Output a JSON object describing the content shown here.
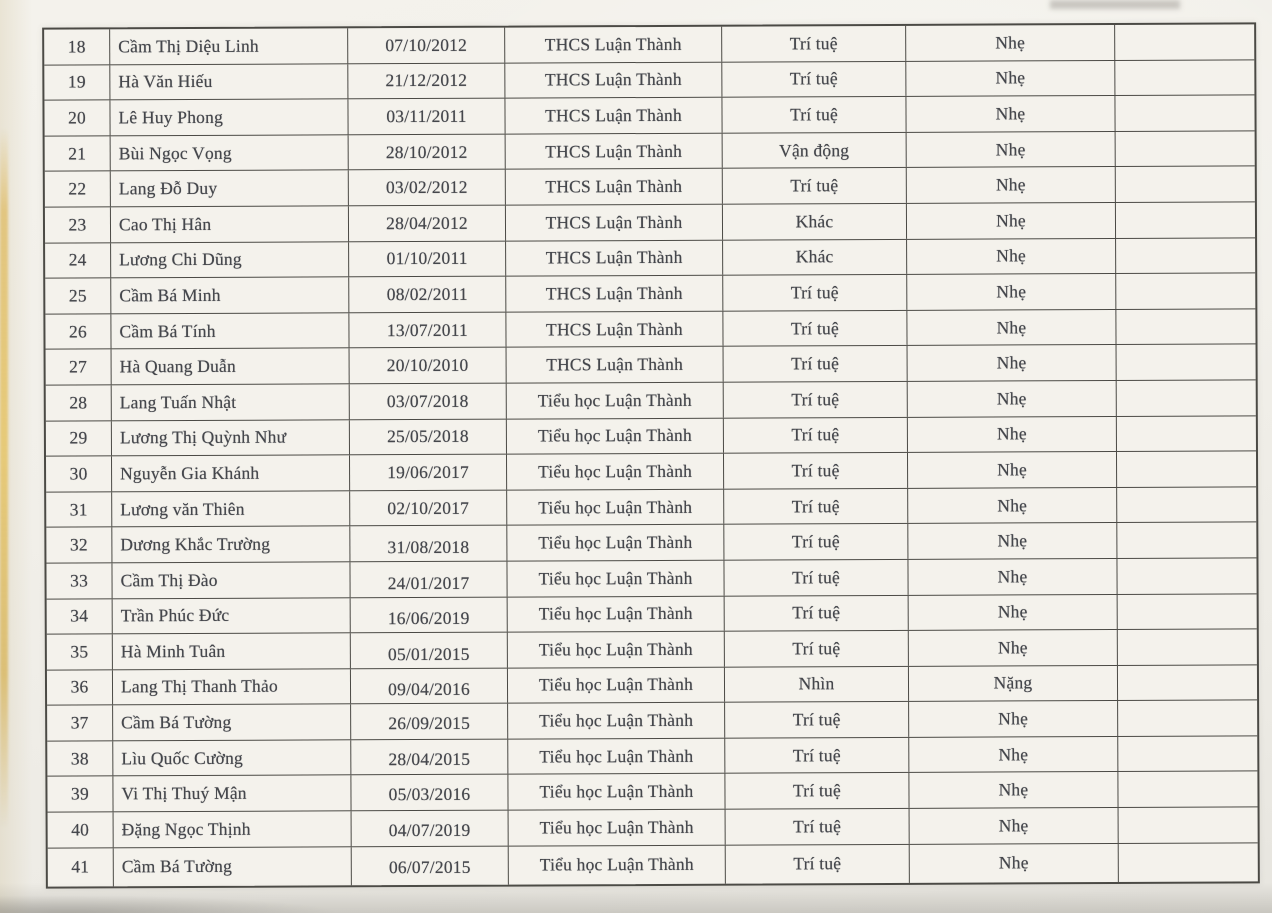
{
  "colors": {
    "paper": "#f1efe9",
    "table_background": "#f4f2ec",
    "table_border": "#4b4a45",
    "text": "#45474c",
    "page_edge_yellow": "#e0bd67"
  },
  "table": {
    "columns": [
      "index",
      "name",
      "date_of_birth",
      "school",
      "disability_type",
      "severity",
      "note"
    ],
    "rows": [
      [
        "18",
        "Cầm Thị Diệu Linh",
        "07/10/2012",
        "THCS Luận Thành",
        "Trí tuệ",
        "Nhẹ",
        ""
      ],
      [
        "19",
        "Hà Văn Hiếu",
        "21/12/2012",
        "THCS Luận Thành",
        "Trí tuệ",
        "Nhẹ",
        ""
      ],
      [
        "20",
        "Lê Huy Phong",
        "03/11/2011",
        "THCS Luận Thành",
        "Trí tuệ",
        "Nhẹ",
        ""
      ],
      [
        "21",
        "Bùi Ngọc Vọng",
        "28/10/2012",
        "THCS Luận Thành",
        "Vận động",
        "Nhẹ",
        ""
      ],
      [
        "22",
        "Lang Đỗ Duy",
        "03/02/2012",
        "THCS Luận Thành",
        "Trí tuệ",
        "Nhẹ",
        ""
      ],
      [
        "23",
        "Cao Thị Hân",
        "28/04/2012",
        "THCS Luận Thành",
        "Khác",
        "Nhẹ",
        ""
      ],
      [
        "24",
        "Lương Chi Dũng",
        "01/10/2011",
        "THCS Luận Thành",
        "Khác",
        "Nhẹ",
        ""
      ],
      [
        "25",
        "Cầm Bá Minh",
        "08/02/2011",
        "THCS Luận Thành",
        "Trí tuệ",
        "Nhẹ",
        ""
      ],
      [
        "26",
        "Cầm Bá Tính",
        "13/07/2011",
        "THCS Luận Thành",
        "Trí tuệ",
        "Nhẹ",
        ""
      ],
      [
        "27",
        "Hà Quang Duẫn",
        "20/10/2010",
        "THCS Luận Thành",
        "Trí tuệ",
        "Nhẹ",
        ""
      ],
      [
        "28",
        "Lang Tuấn Nhật",
        "03/07/2018",
        "Tiểu học Luận Thành",
        "Trí tuệ",
        "Nhẹ",
        ""
      ],
      [
        "29",
        "Lương Thị Quỳnh Như",
        "25/05/2018",
        "Tiểu học Luận Thành",
        "Trí tuệ",
        "Nhẹ",
        ""
      ],
      [
        "30",
        "Nguyễn Gia Khánh",
        "19/06/2017",
        "Tiểu học Luận Thành",
        "Trí tuệ",
        "Nhẹ",
        ""
      ],
      [
        "31",
        "Lương văn Thiên",
        "02/10/2017",
        "Tiểu học Luận Thành",
        "Trí tuệ",
        "Nhẹ",
        ""
      ],
      [
        "32",
        "Dương Khắc Trường",
        "31/08/2018",
        "Tiểu học Luận Thành",
        "Trí tuệ",
        "Nhẹ",
        ""
      ],
      [
        "33",
        "Cầm Thị Đào",
        "24/01/2017",
        "Tiểu học Luận Thành",
        "Trí tuệ",
        "Nhẹ",
        ""
      ],
      [
        "34",
        "Trần Phúc Đức",
        "16/06/2019",
        "Tiểu học Luận Thành",
        "Trí tuệ",
        "Nhẹ",
        ""
      ],
      [
        "35",
        "Hà Minh Tuân",
        "05/01/2015",
        "Tiểu học Luận Thành",
        "Trí tuệ",
        "Nhẹ",
        ""
      ],
      [
        "36",
        "Lang Thị Thanh Thảo",
        "09/04/2016",
        "Tiểu học Luận Thành",
        "Nhìn",
        "Nặng",
        ""
      ],
      [
        "37",
        "Cầm Bá Tường",
        "26/09/2015",
        "Tiểu học Luận Thành",
        "Trí tuệ",
        "Nhẹ",
        ""
      ],
      [
        "38",
        "Lìu Quốc Cường",
        "28/04/2015",
        "Tiểu học Luận Thành",
        "Trí tuệ",
        "Nhẹ",
        ""
      ],
      [
        "39",
        "Vi Thị Thuý Mận",
        "05/03/2016",
        "Tiểu học Luận Thành",
        "Trí tuệ",
        "Nhẹ",
        ""
      ],
      [
        "40",
        "Đặng Ngọc Thịnh",
        "04/07/2019",
        "Tiểu học Luận Thành",
        "Trí tuệ",
        "Nhẹ",
        ""
      ],
      [
        "41",
        "Cầm Bá Tường",
        "06/07/2015",
        "Tiểu học Luận Thành",
        "Trí tuệ",
        "Nhẹ",
        ""
      ]
    ]
  }
}
